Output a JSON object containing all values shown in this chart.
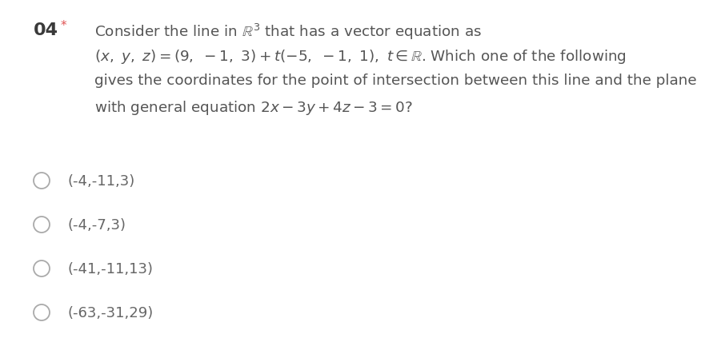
{
  "background_color": "#ffffff",
  "question_number": "04",
  "asterisk_color": "#e05050",
  "question_number_fontsize": 16,
  "question_number_color": "#3a3a3a",
  "text_color": "#555555",
  "text_fontsize": 13.2,
  "line1": "Consider the line in $\\mathbb{R}^3$ that has a vector equation as",
  "line2": "$(x,\\ y,\\ z) = (9,\\ -1,\\ 3) + t(-5,\\ -1,\\ 1),\\ t \\in \\mathbb{R}$. Which one of the following",
  "line3": "gives the coordinates for the point of intersection between this line and the plane",
  "line4": "with general equation $2x - 3y + 4z - 3 = 0$?",
  "options": [
    "(-4,-11,3)",
    "(-4,-7,3)",
    "(-41,-11,13)",
    "(-63,-31,29)"
  ],
  "option_fontsize": 13,
  "option_color": "#666666",
  "circle_color": "#aaaaaa",
  "circle_linewidth": 1.3
}
